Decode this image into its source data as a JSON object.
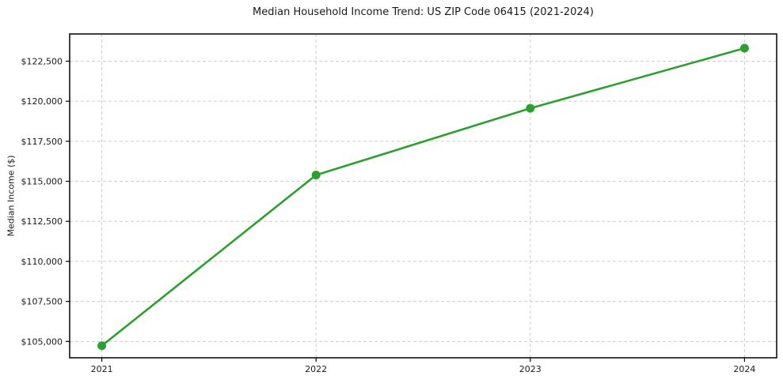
{
  "chart_data": {
    "type": "line",
    "title": "Median Household Income Trend: US ZIP Code 06415 (2021-2024)",
    "xlabel": "",
    "ylabel": "Median Income ($)",
    "x": [
      2021,
      2022,
      2023,
      2024
    ],
    "series": [
      {
        "name": "Median household income",
        "values": [
          104730,
          115390,
          119560,
          123310
        ],
        "color": "#2ca02c",
        "marker": "circle"
      }
    ],
    "xticks": {
      "values": [
        2021,
        2022,
        2023,
        2024
      ],
      "labels": [
        "2021",
        "2022",
        "2023",
        "2024"
      ]
    },
    "yticks": {
      "values": [
        105000,
        107500,
        110000,
        112500,
        115000,
        117500,
        120000,
        122500
      ],
      "labels": [
        "$105,000",
        "$107,500",
        "$110,000",
        "$112,500",
        "$115,000",
        "$117,500",
        "$120,000",
        "$122,500"
      ]
    },
    "xlim": [
      2020.85,
      2024.15
    ],
    "ylim": [
      103980,
      124200
    ],
    "grid": true,
    "grid_style": "dashed",
    "legend": "none",
    "colors": {
      "line": "#2ca02c",
      "grid": "#cccccc",
      "axis": "#000000",
      "text": "#1a1a1a",
      "background": "#ffffff"
    }
  }
}
